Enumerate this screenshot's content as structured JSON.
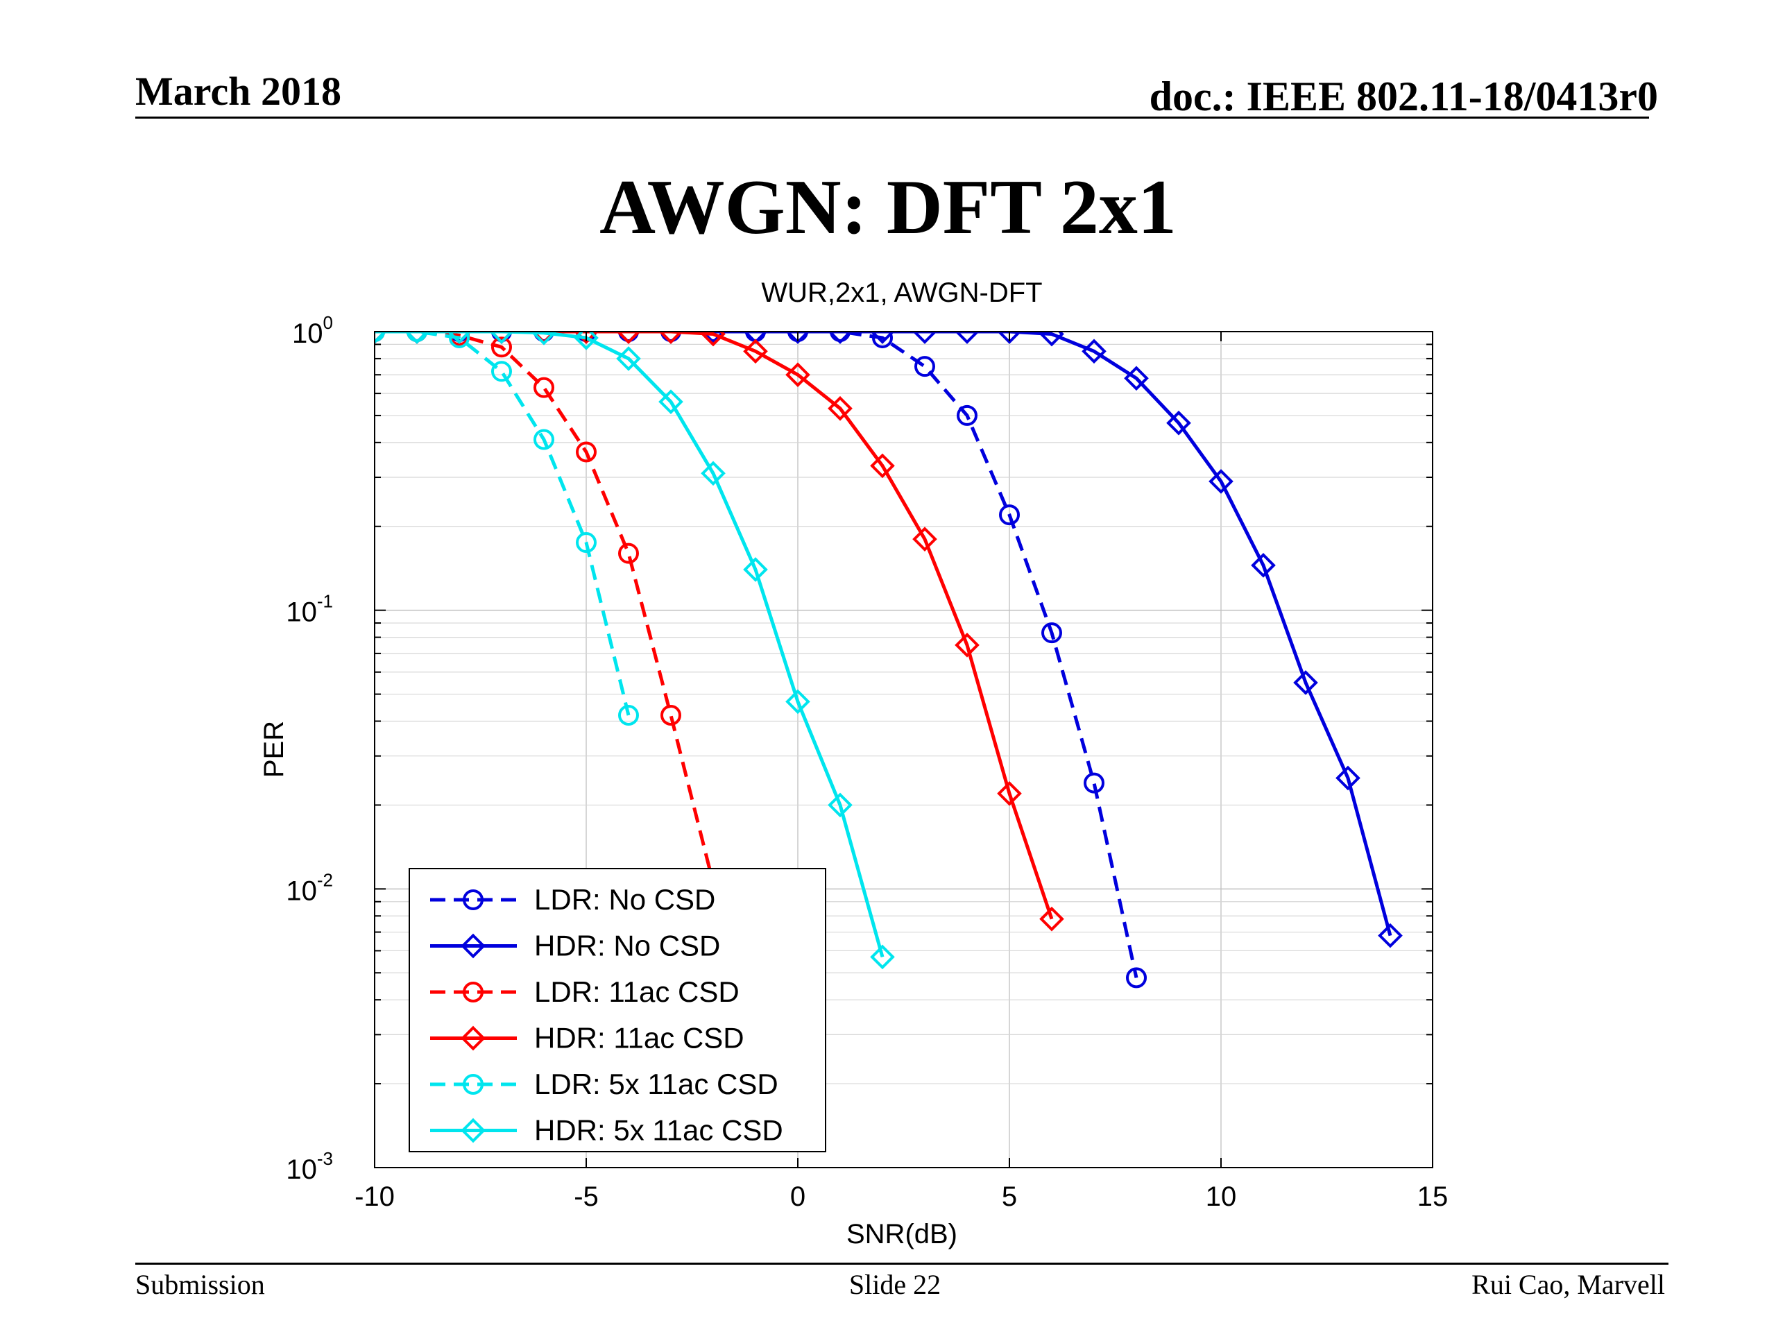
{
  "header": {
    "date": "March 2018",
    "doc_id": "doc.: IEEE 802.11-18/0413r0",
    "slide_title": "AWGN: DFT 2x1"
  },
  "footer": {
    "left": "Submission",
    "center": "Slide 22",
    "right": "Rui Cao, Marvell"
  },
  "chart_data": {
    "type": "line",
    "title": "WUR,2x1, AWGN-DFT",
    "xlabel": "SNR(dB)",
    "ylabel": "PER",
    "xlim": [
      -10,
      15
    ],
    "ylim": [
      0.001,
      1
    ],
    "yscale": "log",
    "grid": true,
    "legend_position": "bottom-left",
    "xticks": [
      -10,
      -5,
      0,
      5,
      10,
      15
    ],
    "xtick_labels": [
      "-10",
      "-5",
      "0",
      "5",
      "10",
      "15"
    ],
    "yticks": [
      {
        "base": "10",
        "exp": "0"
      },
      {
        "base": "10",
        "exp": "-1"
      },
      {
        "base": "10",
        "exp": "-2"
      },
      {
        "base": "10",
        "exp": "-3"
      }
    ],
    "series": [
      {
        "name": "LDR: No CSD",
        "color": "#0000dd",
        "dash": true,
        "marker": "circle",
        "x": [
          -10,
          -9,
          -8,
          -7,
          -6,
          -5,
          -4,
          -3,
          -2,
          -1,
          0,
          1,
          2,
          3,
          4,
          5,
          6,
          7,
          8
        ],
        "y": [
          1,
          1,
          1,
          1,
          1,
          1,
          1,
          1,
          1,
          1,
          1,
          1,
          0.95,
          0.75,
          0.5,
          0.22,
          0.083,
          0.024,
          0.0048
        ]
      },
      {
        "name": "HDR: No CSD",
        "color": "#0000dd",
        "dash": false,
        "marker": "diamond",
        "x": [
          -10,
          -9,
          -8,
          -7,
          -6,
          -5,
          -4,
          -3,
          -2,
          -1,
          0,
          1,
          2,
          3,
          4,
          5,
          6,
          7,
          8,
          9,
          10,
          11,
          12,
          13,
          14
        ],
        "y": [
          1,
          1,
          1,
          1,
          1,
          1,
          1,
          1,
          1,
          1,
          1,
          1,
          1,
          1,
          1,
          1,
          0.98,
          0.85,
          0.68,
          0.47,
          0.29,
          0.145,
          0.055,
          0.025,
          0.0068
        ]
      },
      {
        "name": "LDR: 11ac CSD",
        "color": "#ff0000",
        "dash": true,
        "marker": "circle",
        "x": [
          -10,
          -9,
          -8,
          -7,
          -6,
          -5,
          -4,
          -3,
          -2
        ],
        "y": [
          1,
          1,
          0.97,
          0.88,
          0.63,
          0.37,
          0.16,
          0.042,
          0.0105
        ]
      },
      {
        "name": "HDR: 11ac CSD",
        "color": "#ff0000",
        "dash": false,
        "marker": "diamond",
        "x": [
          -10,
          -9,
          -8,
          -7,
          -6,
          -5,
          -4,
          -3,
          -2,
          -1,
          0,
          1,
          2,
          3,
          4,
          5,
          6
        ],
        "y": [
          1,
          1,
          1,
          1,
          1,
          1,
          1,
          1,
          0.98,
          0.85,
          0.7,
          0.53,
          0.33,
          0.18,
          0.075,
          0.022,
          0.0078
        ]
      },
      {
        "name": "LDR: 5x 11ac CSD",
        "color": "#00e5ee",
        "dash": true,
        "marker": "circle",
        "x": [
          -10,
          -9,
          -8,
          -7,
          -6,
          -5,
          -4
        ],
        "y": [
          1,
          1,
          0.95,
          0.72,
          0.41,
          0.175,
          0.042
        ]
      },
      {
        "name": "HDR: 5x 11ac CSD",
        "color": "#00e5ee",
        "dash": false,
        "marker": "diamond",
        "x": [
          -10,
          -9,
          -8,
          -7,
          -6,
          -5,
          -4,
          -3,
          -2,
          -1,
          0,
          1,
          2
        ],
        "y": [
          1,
          1,
          1,
          1,
          0.99,
          0.95,
          0.8,
          0.56,
          0.31,
          0.14,
          0.047,
          0.02,
          0.0057
        ]
      }
    ]
  }
}
